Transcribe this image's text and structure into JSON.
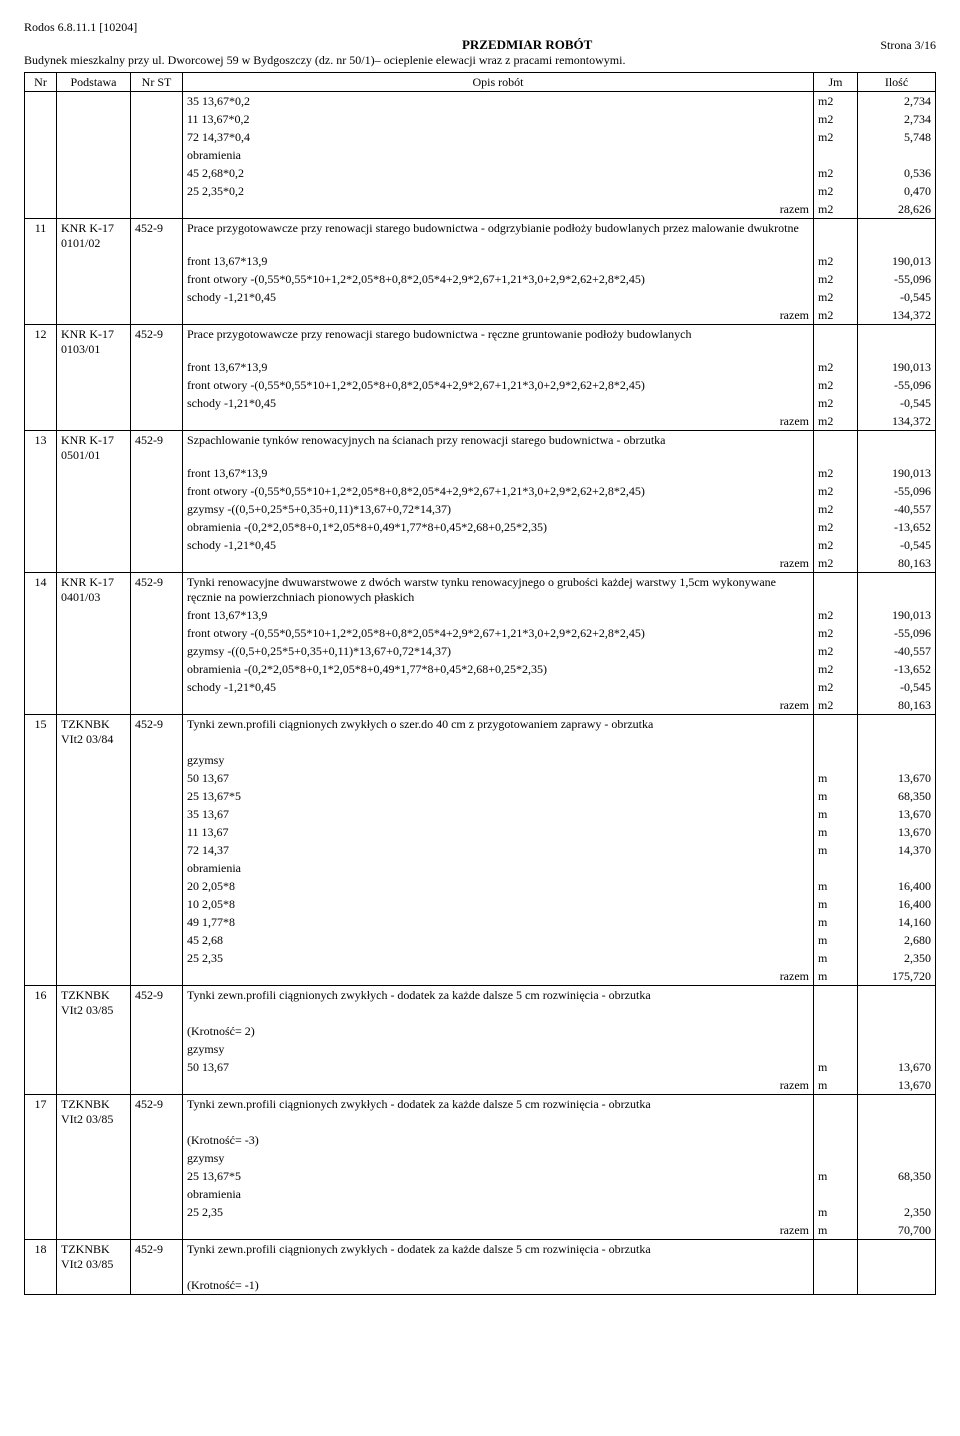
{
  "header": {
    "rodos": "Rodos 6.8.11.1 [10204]",
    "title": "PRZEDMIAR ROBÓT",
    "page": "Strona 3/16",
    "subhead": "Budynek mieszkalny przy ul. Dworcowej 59 w Bydgoszczy (dz. nr 50/1)– ocieplenie elewacji wraz z pracami remontowymi."
  },
  "columns": {
    "nr": "Nr",
    "podstawa": "Podstawa",
    "nrst": "Nr ST",
    "opis": "Opis robót",
    "jm": "Jm",
    "ilosc": "Ilość"
  },
  "intro_rows": [
    {
      "opis": "35   13,67*0,2",
      "jm": "m2",
      "il": "2,734"
    },
    {
      "opis": "11   13,67*0,2",
      "jm": "m2",
      "il": "2,734"
    },
    {
      "opis": "72   14,37*0,4",
      "jm": "m2",
      "il": "5,748"
    },
    {
      "opis": "obramienia",
      "jm": "",
      "il": ""
    },
    {
      "opis": "45   2,68*0,2",
      "jm": "m2",
      "il": "0,536"
    },
    {
      "opis": "25   2,35*0,2",
      "jm": "m2",
      "il": "0,470"
    },
    {
      "opis_r": "razem",
      "jm": "m2",
      "il": "28,626"
    }
  ],
  "groups": [
    {
      "nr": "11",
      "pod": "KNR K-17 0101/02",
      "st": "452-9",
      "first": "Prace przygotowawcze przy renowacji starego budownictwa - odgrzybianie podłoży budowlanych przez malowanie dwukrotne",
      "rows": [
        {
          "opis": "front   13,67*13,9",
          "jm": "m2",
          "il": "190,013"
        },
        {
          "opis": "front otwory   -(0,55*0,55*10+1,2*2,05*8+0,8*2,05*4+2,9*2,67+1,21*3,0+2,9*2,62+2,8*2,45)",
          "jm": "m2",
          "il": "-55,096"
        },
        {
          "opis": "schody   -1,21*0,45",
          "jm": "m2",
          "il": "-0,545"
        },
        {
          "opis_r": "razem",
          "jm": "m2",
          "il": "134,372"
        }
      ]
    },
    {
      "nr": "12",
      "pod": "KNR K-17 0103/01",
      "st": "452-9",
      "first": "Prace przygotowawcze przy renowacji starego budownictwa - ręczne gruntowanie podłoży budowlanych",
      "rows": [
        {
          "opis": "front   13,67*13,9",
          "jm": "m2",
          "il": "190,013"
        },
        {
          "opis": "front otwory   -(0,55*0,55*10+1,2*2,05*8+0,8*2,05*4+2,9*2,67+1,21*3,0+2,9*2,62+2,8*2,45)",
          "jm": "m2",
          "il": "-55,096"
        },
        {
          "opis": "schody   -1,21*0,45",
          "jm": "m2",
          "il": "-0,545"
        },
        {
          "opis_r": "razem",
          "jm": "m2",
          "il": "134,372"
        }
      ]
    },
    {
      "nr": "13",
      "pod": "KNR K-17 0501/01",
      "st": "452-9",
      "first": "Szpachlowanie tynków renowacyjnych na ścianach przy renowacji starego budownictwa - obrzutka",
      "rows": [
        {
          "opis": "front   13,67*13,9",
          "jm": "m2",
          "il": "190,013"
        },
        {
          "opis": "front otwory   -(0,55*0,55*10+1,2*2,05*8+0,8*2,05*4+2,9*2,67+1,21*3,0+2,9*2,62+2,8*2,45)",
          "jm": "m2",
          "il": "-55,096"
        },
        {
          "opis": "gzymsy   -((0,5+0,25*5+0,35+0,11)*13,67+0,72*14,37)",
          "jm": "m2",
          "il": "-40,557"
        },
        {
          "opis": "obramienia   -(0,2*2,05*8+0,1*2,05*8+0,49*1,77*8+0,45*2,68+0,25*2,35)",
          "jm": "m2",
          "il": "-13,652"
        },
        {
          "opis": "schody   -1,21*0,45",
          "jm": "m2",
          "il": "-0,545"
        },
        {
          "opis_r": "razem",
          "jm": "m2",
          "il": "80,163"
        }
      ]
    },
    {
      "nr": "14",
      "pod": "KNR K-17 0401/03",
      "st": "452-9",
      "first": "Tynki renowacyjne dwuwarstwowe z dwóch warstw tynku renowacyjnego o grubości każdej warstwy 1,5cm wykonywane ręcznie na powierzchniach pionowych płaskich",
      "rows": [
        {
          "opis": "front   13,67*13,9",
          "jm": "m2",
          "il": "190,013"
        },
        {
          "opis": "front otwory   -(0,55*0,55*10+1,2*2,05*8+0,8*2,05*4+2,9*2,67+1,21*3,0+2,9*2,62+2,8*2,45)",
          "jm": "m2",
          "il": "-55,096"
        },
        {
          "opis": "gzymsy   -((0,5+0,25*5+0,35+0,11)*13,67+0,72*14,37)",
          "jm": "m2",
          "il": "-40,557"
        },
        {
          "opis": "obramienia   -(0,2*2,05*8+0,1*2,05*8+0,49*1,77*8+0,45*2,68+0,25*2,35)",
          "jm": "m2",
          "il": "-13,652"
        },
        {
          "opis": "schody   -1,21*0,45",
          "jm": "m2",
          "il": "-0,545"
        },
        {
          "opis_r": "razem",
          "jm": "m2",
          "il": "80,163"
        }
      ]
    },
    {
      "nr": "15",
      "pod": "TZKNBK VIt2 03/84",
      "st": "452-9",
      "first": "Tynki zewn.profili ciągnionych zwykłych o szer.do 40 cm z przygotowaniem zaprawy - obrzutka",
      "rows": [
        {
          "opis": "",
          "jm": "",
          "il": ""
        },
        {
          "opis": "gzymsy",
          "jm": "",
          "il": ""
        },
        {
          "opis": "50   13,67",
          "jm": "m",
          "il": "13,670"
        },
        {
          "opis": "25   13,67*5",
          "jm": "m",
          "il": "68,350"
        },
        {
          "opis": "35   13,67",
          "jm": "m",
          "il": "13,670"
        },
        {
          "opis": "11   13,67",
          "jm": "m",
          "il": "13,670"
        },
        {
          "opis": "72   14,37",
          "jm": "m",
          "il": "14,370"
        },
        {
          "opis": "obramienia",
          "jm": "",
          "il": ""
        },
        {
          "opis": "20   2,05*8",
          "jm": "m",
          "il": "16,400"
        },
        {
          "opis": "10   2,05*8",
          "jm": "m",
          "il": "16,400"
        },
        {
          "opis": "49   1,77*8",
          "jm": "m",
          "il": "14,160"
        },
        {
          "opis": "45   2,68",
          "jm": "m",
          "il": "2,680"
        },
        {
          "opis": "25   2,35",
          "jm": "m",
          "il": "2,350"
        },
        {
          "opis_r": "razem",
          "jm": "m",
          "il": "175,720"
        }
      ]
    },
    {
      "nr": "16",
      "pod": "TZKNBK VIt2 03/85",
      "st": "452-9",
      "first": "Tynki zewn.profili ciągnionych zwykłych - dodatek za każde dalsze 5 cm rozwinięcia - obrzutka",
      "rows": [
        {
          "opis": "",
          "jm": "",
          "il": ""
        },
        {
          "opis": " (Krotność= 2)",
          "jm": "",
          "il": ""
        },
        {
          "opis": "gzymsy",
          "jm": "",
          "il": ""
        },
        {
          "opis": "50   13,67",
          "jm": "m",
          "il": "13,670"
        },
        {
          "opis_r": "razem",
          "jm": "m",
          "il": "13,670"
        }
      ]
    },
    {
      "nr": "17",
      "pod": "TZKNBK VIt2 03/85",
      "st": "452-9",
      "first": "Tynki zewn.profili ciągnionych zwykłych - dodatek za każde dalsze 5 cm rozwinięcia - obrzutka",
      "rows": [
        {
          "opis": "",
          "jm": "",
          "il": ""
        },
        {
          "opis": " (Krotność= -3)",
          "jm": "",
          "il": ""
        },
        {
          "opis": "gzymsy",
          "jm": "",
          "il": ""
        },
        {
          "opis": "25   13,67*5",
          "jm": "m",
          "il": "68,350"
        },
        {
          "opis": "obramienia",
          "jm": "",
          "il": ""
        },
        {
          "opis": "25   2,35",
          "jm": "m",
          "il": "2,350"
        },
        {
          "opis_r": "razem",
          "jm": "m",
          "il": "70,700"
        }
      ]
    },
    {
      "nr": "18",
      "pod": "TZKNBK VIt2 03/85",
      "st": "452-9",
      "first": "Tynki zewn.profili ciągnionych zwykłych - dodatek za każde dalsze 5 cm rozwinięcia - obrzutka",
      "rows": [
        {
          "opis": "",
          "jm": "",
          "il": ""
        },
        {
          "opis": " (Krotność= -1)",
          "jm": "",
          "il": ""
        }
      ]
    }
  ]
}
